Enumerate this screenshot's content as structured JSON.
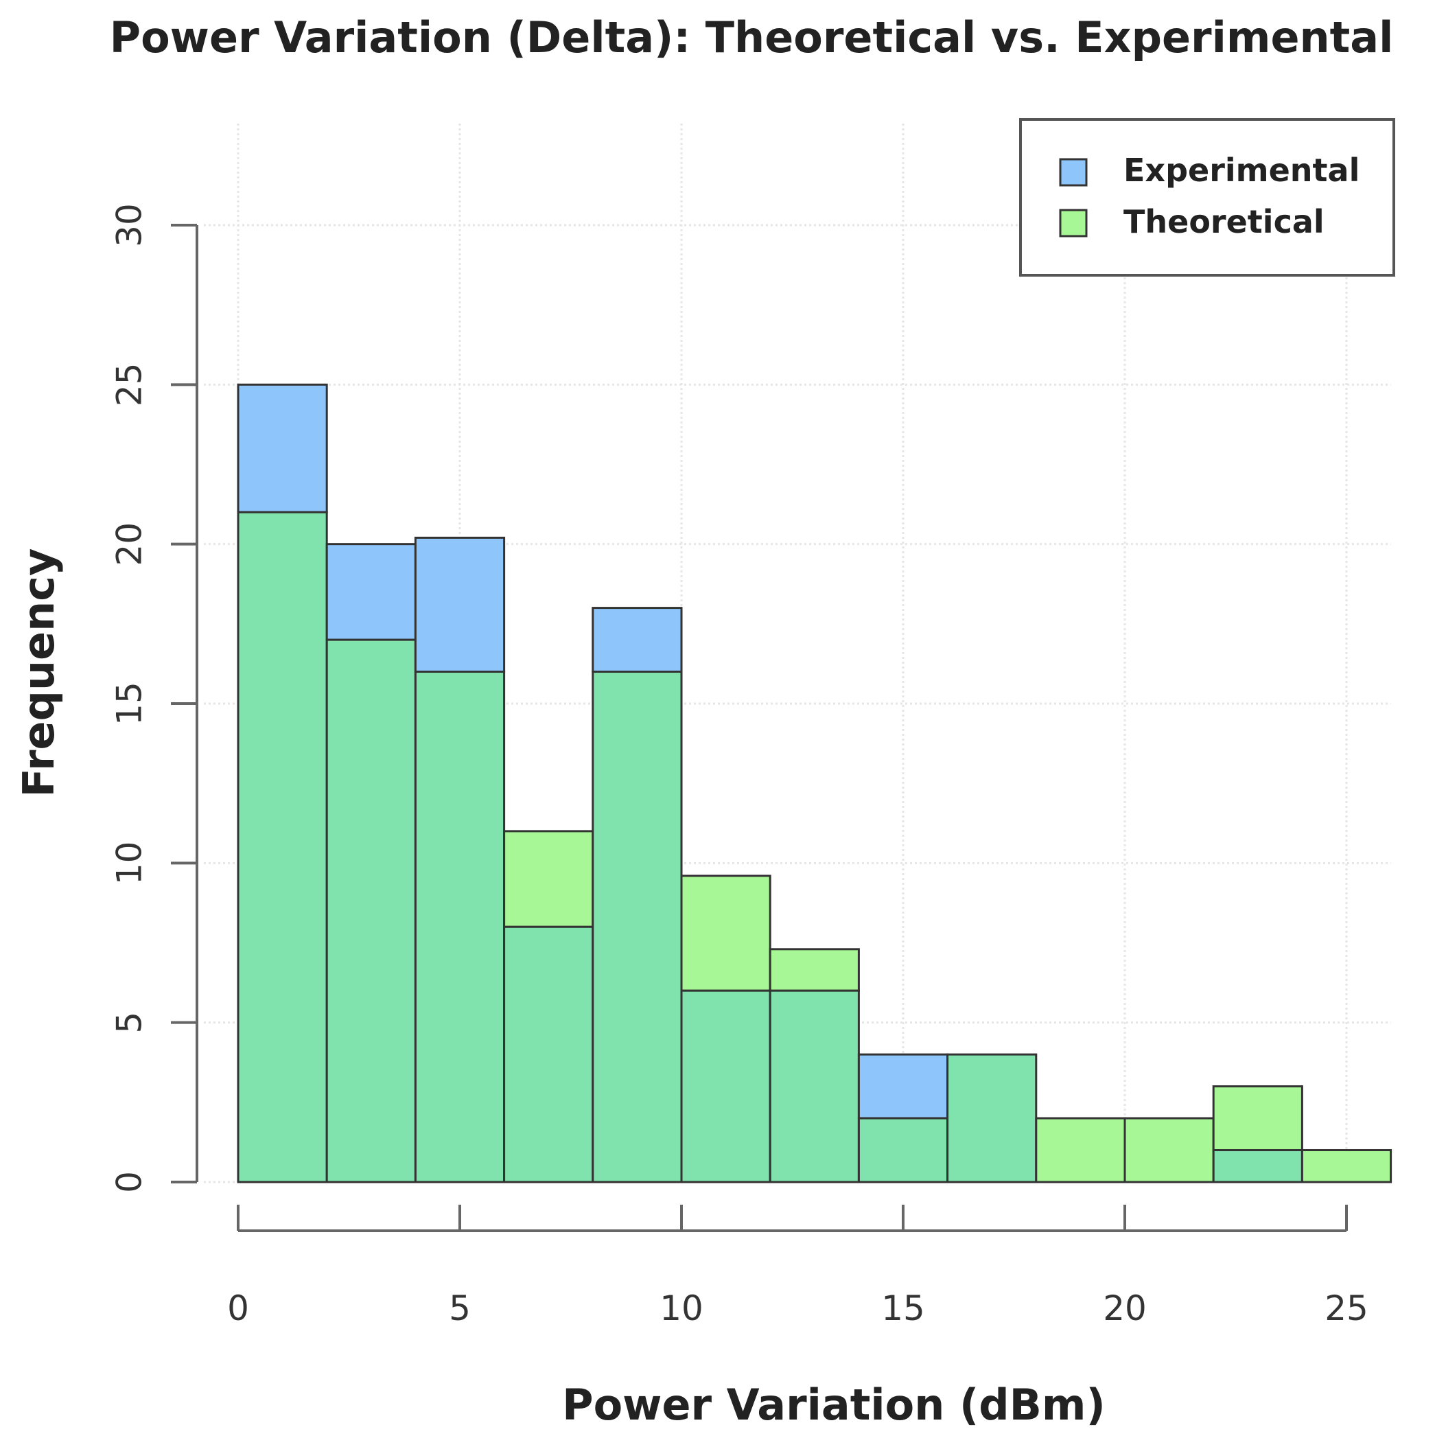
{
  "chart_data": {
    "type": "bar",
    "title": "Power Variation (Delta): Theoretical vs. Experimental",
    "xlabel": "Power Variation (dBm)",
    "ylabel": "Frequency",
    "xlim": [
      0,
      26
    ],
    "ylim": [
      0,
      30
    ],
    "x_ticks": [
      0,
      5,
      10,
      15,
      20,
      25
    ],
    "y_ticks": [
      0,
      5,
      10,
      15,
      20,
      25,
      30
    ],
    "grid": true,
    "legend_position": "top-right",
    "bin_edges": [
      0,
      2,
      4,
      6,
      8,
      10,
      12,
      14,
      16,
      18,
      20,
      22,
      24,
      26
    ],
    "series": [
      {
        "name": "Experimental",
        "color": "#8ec5fb",
        "values": [
          25,
          20,
          20.2,
          8,
          18,
          6,
          6,
          4,
          4,
          0,
          0,
          1,
          0
        ]
      },
      {
        "name": "Theoretical",
        "color": "#a8f796",
        "values": [
          21,
          17,
          16,
          11,
          16,
          9.6,
          7.3,
          2,
          4,
          2,
          2,
          3,
          1
        ]
      }
    ],
    "overlap_color": "#80e3ae",
    "legend": {
      "items": [
        "Experimental",
        "Theoretical"
      ]
    }
  }
}
